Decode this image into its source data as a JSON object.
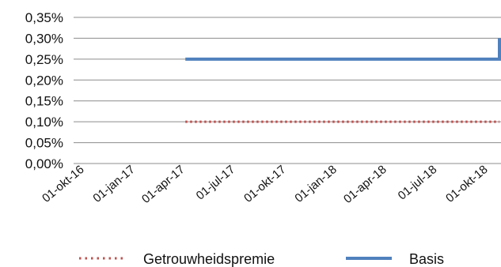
{
  "chart_data": {
    "type": "line",
    "x_ticks": [
      "01-okt-16",
      "01-jan-17",
      "01-apr-17",
      "01-jul-17",
      "01-okt-17",
      "01-jan-18",
      "01-apr-18",
      "01-jul-18",
      "01-okt-18"
    ],
    "y_ticks": [
      "0,00%",
      "0,05%",
      "0,10%",
      "0,15%",
      "0,20%",
      "0,25%",
      "0,30%",
      "0,35%"
    ],
    "ylim": [
      0,
      0.35
    ],
    "grid": true,
    "legend_placement": "bottom-center",
    "series": [
      {
        "name": "Getrouwheidspremie",
        "style": "dotted",
        "color": "#c0504d",
        "points": [
          {
            "x": "2017-04-01",
            "y": 0.1
          },
          {
            "x": "2018-12-01",
            "y": 0.1
          }
        ]
      },
      {
        "name": "Basis",
        "style": "solid",
        "color": "#4f81bd",
        "points": [
          {
            "x": "2017-04-01",
            "y": 0.25
          },
          {
            "x": "2018-11-30",
            "y": 0.25
          },
          {
            "x": "2018-11-30",
            "y": 0.3
          }
        ]
      }
    ]
  }
}
